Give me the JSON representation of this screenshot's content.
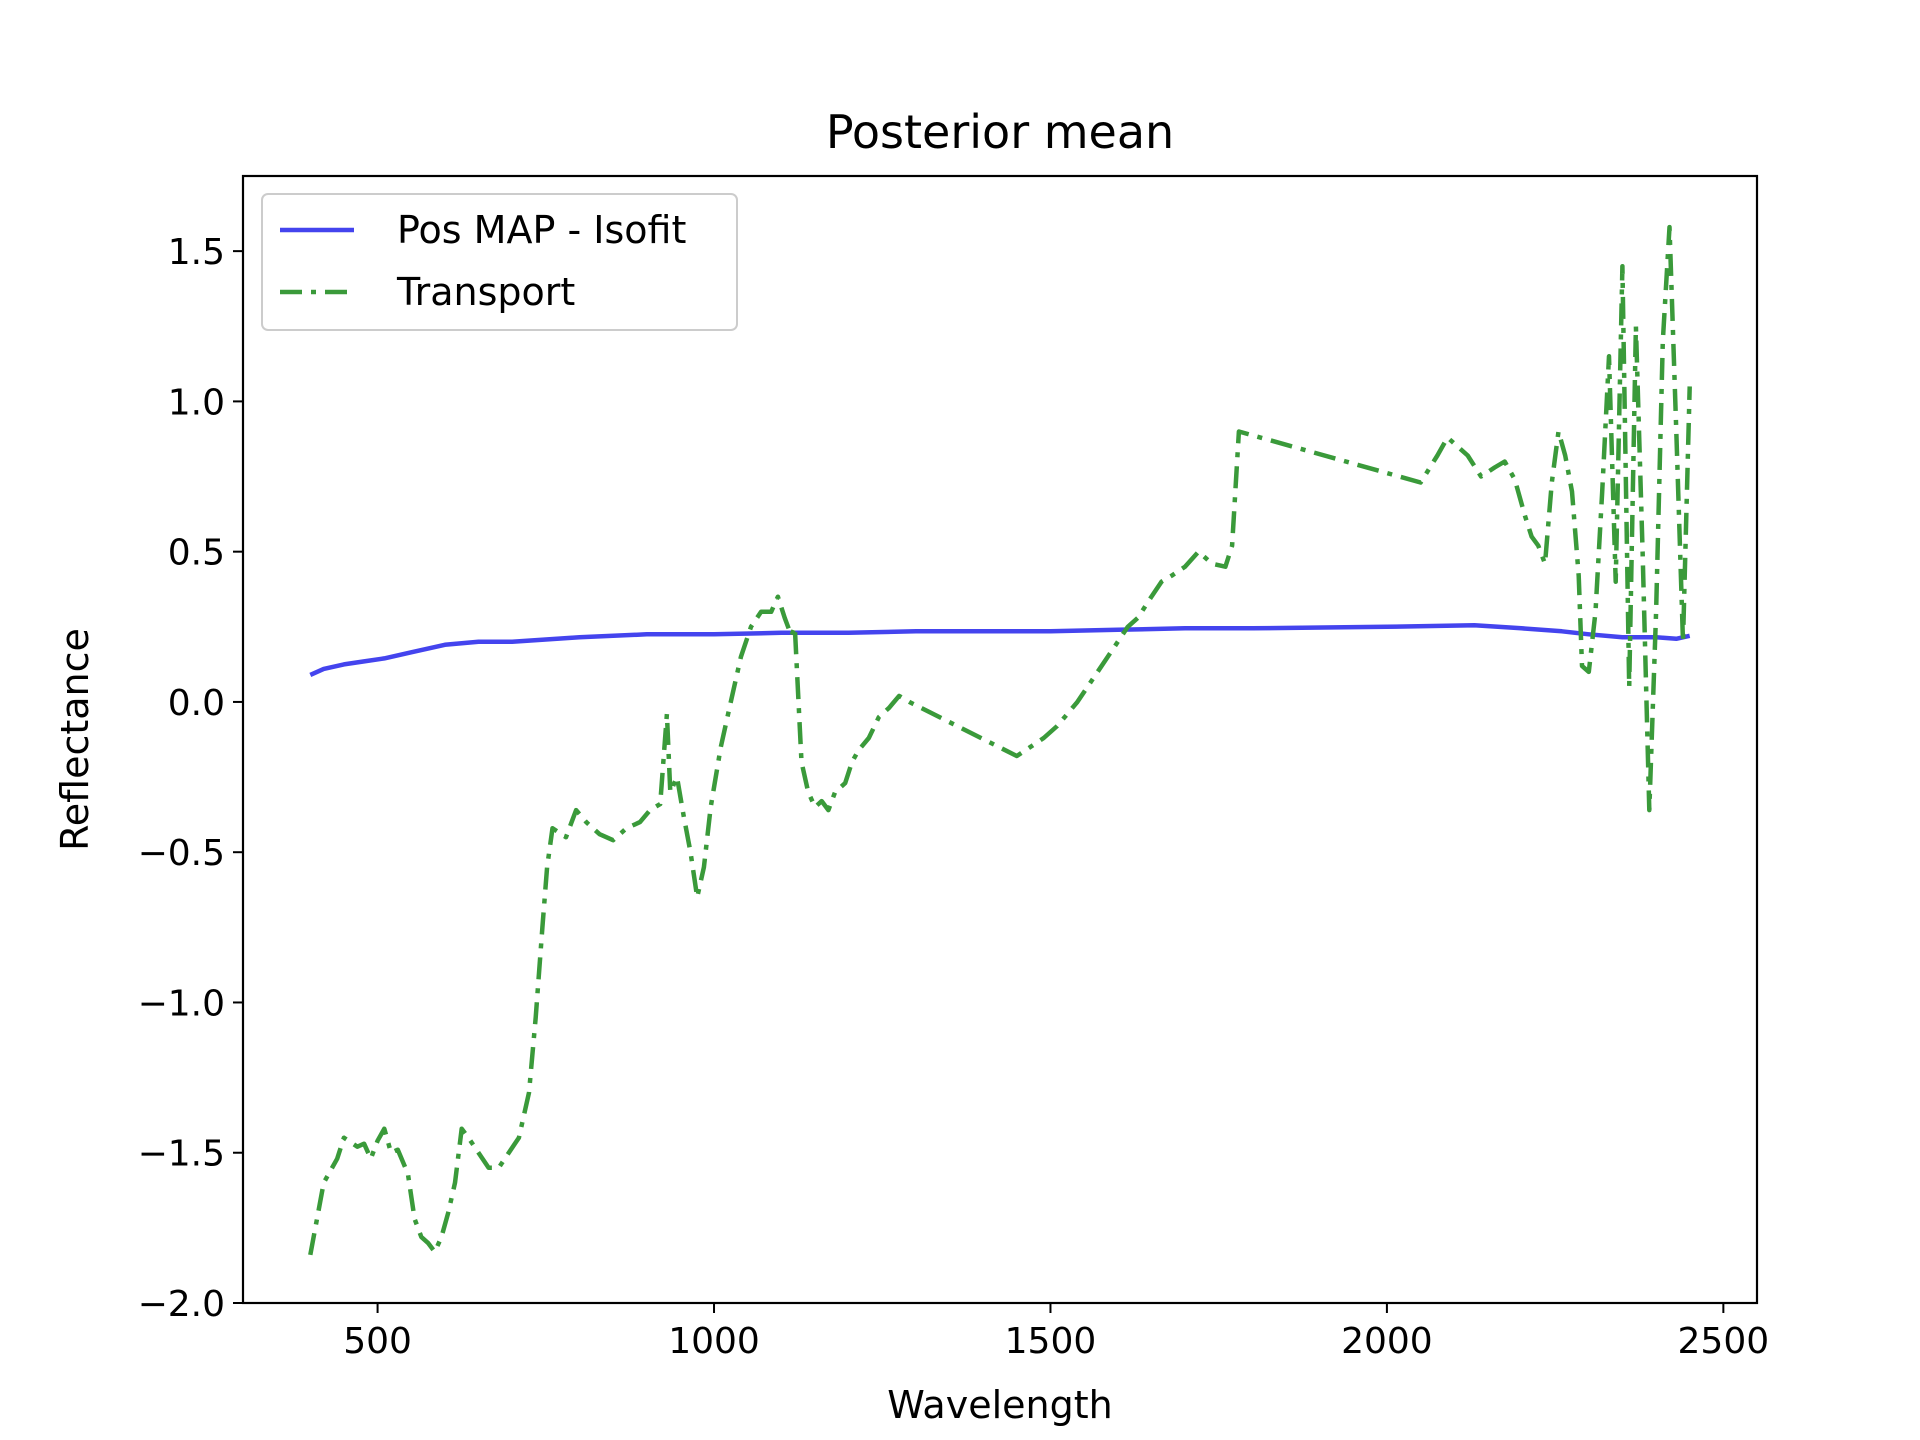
{
  "chart_data": {
    "type": "line",
    "title": "Posterior mean",
    "xlabel": "Wavelength",
    "ylabel": "Reflectance",
    "xlim": [
      300,
      2550
    ],
    "ylim": [
      -2.0,
      1.75
    ],
    "xticks": [
      500,
      1000,
      1500,
      2000,
      2500
    ],
    "xtick_labels": [
      "500",
      "1000",
      "1500",
      "2000",
      "2500"
    ],
    "yticks": [
      -2.0,
      -1.5,
      -1.0,
      -0.5,
      0.0,
      0.5,
      1.0,
      1.5
    ],
    "ytick_labels": [
      "−2.0",
      "−1.5",
      "−1.0",
      "−0.5",
      "0.0",
      "0.5",
      "1.0",
      "1.5"
    ],
    "grid": false,
    "legend_position": "top-left",
    "series": [
      {
        "name": "Pos MAP - Isofit",
        "color": "#4444ee",
        "style": "solid",
        "points": [
          [
            400,
            0.09
          ],
          [
            420,
            0.11
          ],
          [
            450,
            0.125
          ],
          [
            480,
            0.135
          ],
          [
            510,
            0.145
          ],
          [
            550,
            0.165
          ],
          [
            600,
            0.19
          ],
          [
            650,
            0.2
          ],
          [
            700,
            0.2
          ],
          [
            800,
            0.215
          ],
          [
            900,
            0.225
          ],
          [
            1000,
            0.225
          ],
          [
            1100,
            0.23
          ],
          [
            1200,
            0.23
          ],
          [
            1300,
            0.235
          ],
          [
            1400,
            0.235
          ],
          [
            1500,
            0.235
          ],
          [
            1600,
            0.24
          ],
          [
            1700,
            0.245
          ],
          [
            1800,
            0.245
          ],
          [
            2000,
            0.25
          ],
          [
            2130,
            0.255
          ],
          [
            2200,
            0.245
          ],
          [
            2260,
            0.235
          ],
          [
            2300,
            0.225
          ],
          [
            2350,
            0.215
          ],
          [
            2400,
            0.215
          ],
          [
            2430,
            0.21
          ],
          [
            2450,
            0.22
          ]
        ]
      },
      {
        "name": "Transport",
        "color": "#3a9a3a",
        "style": "dashdot",
        "points": [
          [
            400,
            -1.84
          ],
          [
            410,
            -1.72
          ],
          [
            420,
            -1.6
          ],
          [
            440,
            -1.52
          ],
          [
            450,
            -1.45
          ],
          [
            470,
            -1.48
          ],
          [
            480,
            -1.47
          ],
          [
            490,
            -1.52
          ],
          [
            500,
            -1.46
          ],
          [
            510,
            -1.42
          ],
          [
            520,
            -1.5
          ],
          [
            530,
            -1.49
          ],
          [
            545,
            -1.57
          ],
          [
            555,
            -1.72
          ],
          [
            565,
            -1.78
          ],
          [
            575,
            -1.8
          ],
          [
            585,
            -1.83
          ],
          [
            595,
            -1.78
          ],
          [
            605,
            -1.7
          ],
          [
            615,
            -1.6
          ],
          [
            625,
            -1.42
          ],
          [
            635,
            -1.45
          ],
          [
            650,
            -1.5
          ],
          [
            665,
            -1.55
          ],
          [
            680,
            -1.55
          ],
          [
            695,
            -1.5
          ],
          [
            710,
            -1.45
          ],
          [
            725,
            -1.3
          ],
          [
            735,
            -1.05
          ],
          [
            745,
            -0.75
          ],
          [
            752,
            -0.55
          ],
          [
            760,
            -0.42
          ],
          [
            780,
            -0.45
          ],
          [
            795,
            -0.36
          ],
          [
            810,
            -0.4
          ],
          [
            830,
            -0.44
          ],
          [
            850,
            -0.46
          ],
          [
            870,
            -0.42
          ],
          [
            890,
            -0.4
          ],
          [
            905,
            -0.36
          ],
          [
            920,
            -0.34
          ],
          [
            930,
            -0.04
          ],
          [
            935,
            -0.3
          ],
          [
            945,
            -0.25
          ],
          [
            955,
            -0.38
          ],
          [
            965,
            -0.5
          ],
          [
            975,
            -0.65
          ],
          [
            985,
            -0.55
          ],
          [
            995,
            -0.35
          ],
          [
            1010,
            -0.15
          ],
          [
            1025,
            0.0
          ],
          [
            1040,
            0.15
          ],
          [
            1055,
            0.25
          ],
          [
            1070,
            0.3
          ],
          [
            1085,
            0.3
          ],
          [
            1095,
            0.35
          ],
          [
            1105,
            0.28
          ],
          [
            1115,
            0.22
          ],
          [
            1120,
            0.25
          ],
          [
            1130,
            -0.2
          ],
          [
            1140,
            -0.3
          ],
          [
            1150,
            -0.35
          ],
          [
            1160,
            -0.33
          ],
          [
            1170,
            -0.36
          ],
          [
            1180,
            -0.3
          ],
          [
            1195,
            -0.27
          ],
          [
            1205,
            -0.2
          ],
          [
            1215,
            -0.16
          ],
          [
            1230,
            -0.12
          ],
          [
            1245,
            -0.05
          ],
          [
            1260,
            -0.02
          ],
          [
            1275,
            0.02
          ],
          [
            1290,
            0.0
          ],
          [
            1450,
            -0.18
          ],
          [
            1470,
            -0.15
          ],
          [
            1490,
            -0.12
          ],
          [
            1510,
            -0.08
          ],
          [
            1525,
            -0.04
          ],
          [
            1540,
            0.0
          ],
          [
            1555,
            0.05
          ],
          [
            1570,
            0.1
          ],
          [
            1585,
            0.15
          ],
          [
            1600,
            0.2
          ],
          [
            1615,
            0.25
          ],
          [
            1630,
            0.28
          ],
          [
            1650,
            0.35
          ],
          [
            1665,
            0.4
          ],
          [
            1680,
            0.42
          ],
          [
            1700,
            0.45
          ],
          [
            1720,
            0.5
          ],
          [
            1740,
            0.46
          ],
          [
            1760,
            0.45
          ],
          [
            1770,
            0.52
          ],
          [
            1780,
            0.9
          ],
          [
            2050,
            0.73
          ],
          [
            2075,
            0.82
          ],
          [
            2090,
            0.88
          ],
          [
            2105,
            0.85
          ],
          [
            2120,
            0.82
          ],
          [
            2140,
            0.75
          ],
          [
            2160,
            0.78
          ],
          [
            2175,
            0.8
          ],
          [
            2190,
            0.74
          ],
          [
            2205,
            0.62
          ],
          [
            2215,
            0.55
          ],
          [
            2225,
            0.52
          ],
          [
            2235,
            0.46
          ],
          [
            2245,
            0.73
          ],
          [
            2255,
            0.9
          ],
          [
            2265,
            0.82
          ],
          [
            2275,
            0.7
          ],
          [
            2285,
            0.42
          ],
          [
            2290,
            0.12
          ],
          [
            2300,
            0.1
          ],
          [
            2310,
            0.3
          ],
          [
            2320,
            0.7
          ],
          [
            2330,
            1.15
          ],
          [
            2340,
            0.4
          ],
          [
            2350,
            1.45
          ],
          [
            2360,
            0.05
          ],
          [
            2370,
            1.25
          ],
          [
            2380,
            0.5
          ],
          [
            2390,
            -0.36
          ],
          [
            2400,
            0.3
          ],
          [
            2410,
            1.2
          ],
          [
            2420,
            1.58
          ],
          [
            2430,
            0.9
          ],
          [
            2440,
            0.2
          ],
          [
            2450,
            1.05
          ]
        ]
      }
    ]
  }
}
